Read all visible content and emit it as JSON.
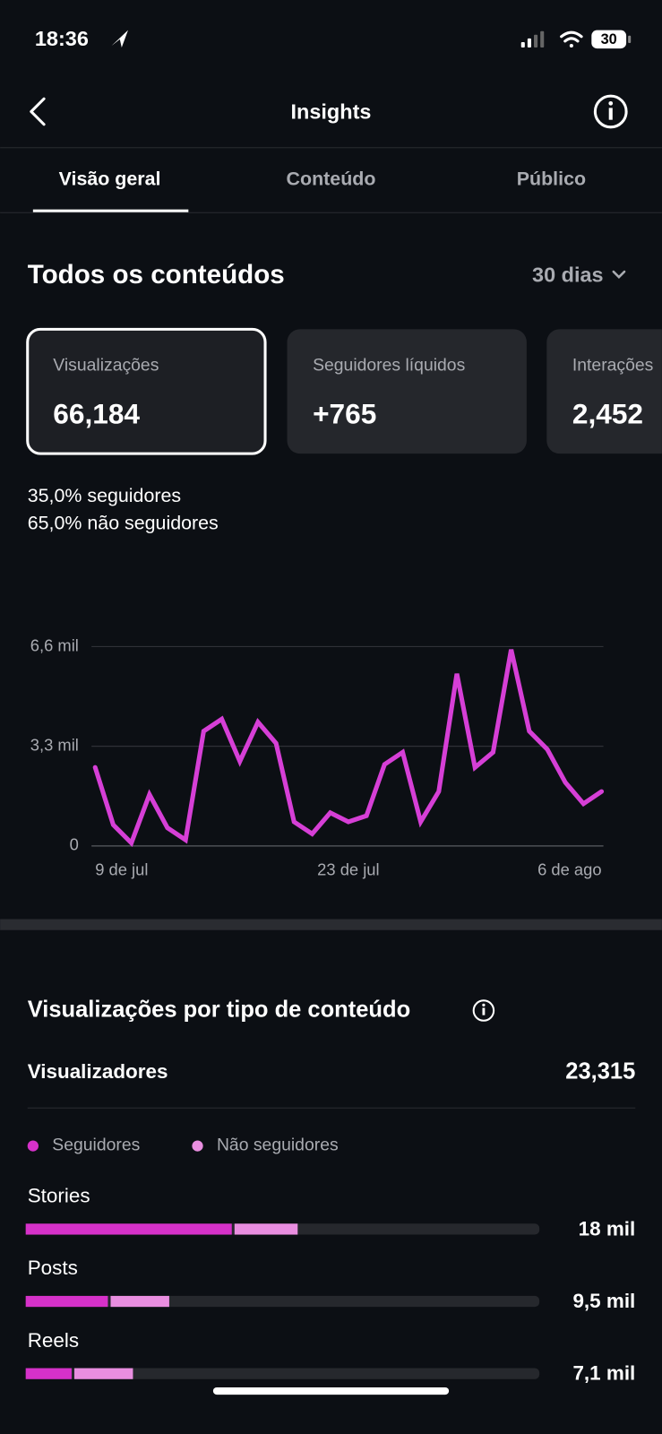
{
  "status": {
    "time": "18:36",
    "battery": "30"
  },
  "header": {
    "title": "Insights"
  },
  "tabs": [
    "Visão geral",
    "Conteúdo",
    "Público"
  ],
  "section": {
    "title": "Todos os conteúdos",
    "period": "30 dias"
  },
  "cards": [
    {
      "label": "Visualizações",
      "value": "66,184"
    },
    {
      "label": "Seguidores líquidos",
      "value": "+765"
    },
    {
      "label": "Interações",
      "value": "2,452"
    }
  ],
  "audience": [
    {
      "percent": "35,0%",
      "label": "seguidores"
    },
    {
      "percent": "65,0%",
      "label": "não seguidores"
    }
  ],
  "chart_data": [
    {
      "type": "line",
      "categories": [
        "9 de jul",
        null,
        null,
        null,
        null,
        null,
        null,
        null,
        null,
        null,
        null,
        null,
        null,
        null,
        "23 de jul",
        null,
        null,
        null,
        null,
        null,
        null,
        null,
        null,
        null,
        null,
        null,
        null,
        null,
        "6 de ago"
      ],
      "values": [
        2600,
        700,
        100,
        1700,
        600,
        200,
        3800,
        4200,
        2800,
        4100,
        3400,
        800,
        400,
        1100,
        800,
        1000,
        2700,
        3100,
        800,
        1800,
        5700,
        2600,
        3100,
        6500,
        3800,
        3200,
        2100,
        1400,
        1800
      ],
      "color": "#d63fd6",
      "ylim": [
        0,
        6600
      ],
      "yticks": [
        0,
        {
          "value": 3300,
          "label": "3,3 mil"
        },
        {
          "value": 6600,
          "label": "6,6 mil"
        }
      ],
      "grid": true
    },
    {
      "type": "stacked-bar",
      "title": "Visualizações por tipo de conteúdo",
      "viewers_label": "Visualizadores",
      "viewers": "23,315",
      "categories": [
        "Stories",
        "Posts",
        "Reels"
      ],
      "series": [
        {
          "name": "Seguidores",
          "color": "#d631c9",
          "values": [
            13700,
            5500,
            3100
          ]
        },
        {
          "name": "Não seguidores",
          "color": "#e98ee0",
          "values": [
            4300,
            4000,
            4000
          ]
        }
      ],
      "values": [
        18000,
        9500,
        7100
      ],
      "value_labels": [
        "18 mil",
        "9,5 mil",
        "7,1 mil"
      ],
      "xlim": [
        0,
        34000
      ]
    }
  ]
}
